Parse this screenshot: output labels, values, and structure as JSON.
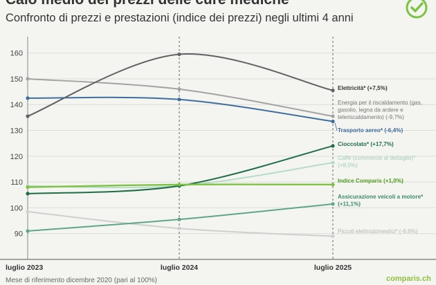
{
  "header": {
    "title": "Calo medio dei prezzi delle cure mediche",
    "subtitle": "Confronto di prezzi e prestazioni (indice dei prezzi) negli ultimi 4 anni"
  },
  "footer": {
    "note": "Mese di riferimento dicembre 2020 (pari al 100%)",
    "brand": "comparis.ch"
  },
  "colors": {
    "background": "#f4f4f1",
    "grid": "#dcdcd8",
    "accent": "#7dc242"
  },
  "logo_icon": "check-circle-icon",
  "chart_data": {
    "type": "line",
    "title": "Calo medio dei prezzi delle cure mediche",
    "subtitle": "Confronto di prezzi e prestazioni (indice dei prezzi) negli ultimi 4 anni",
    "categories": [
      "luglio 2023",
      "luglio 2024",
      "luglio 2025"
    ],
    "ylim": [
      80,
      165
    ],
    "yticks": [
      90,
      100,
      110,
      120,
      130,
      140,
      150,
      160
    ],
    "grid": true,
    "legend": "end-of-line labels, right",
    "series": [
      {
        "name": "Elettricità* (+7,5%)",
        "label_lines": [
          "Elettricità* (+7,5%)"
        ],
        "values": [
          135.5,
          159.5,
          145.5
        ],
        "color": "#5f6163",
        "label_color": "#333333"
      },
      {
        "name": "Energia per il riscaldamento (gas, gasolio, legna da ardere e teleriscaldamento) (-9,7%)",
        "label_lines": [
          "Energia per il riscaldamento (gas,",
          "gasolio, legna da ardere e",
          "teleriscaldamento) (-9,7%)"
        ],
        "values": [
          150.0,
          146.0,
          135.5
        ],
        "color": "#a3a3a3",
        "label_color": "#777777"
      },
      {
        "name": "Trasporto aereo* (-6,4%)",
        "label_lines": [
          "Trasporto aereo* (-6,4%)"
        ],
        "values": [
          142.5,
          142.0,
          133.5
        ],
        "color": "#3f6d9c",
        "label_color": "#3f6d9c"
      },
      {
        "name": "Cioccolato* (+17,7%)",
        "label_lines": [
          "Cioccolato* (+17,7%)"
        ],
        "values": [
          105.5,
          108.5,
          124.0
        ],
        "color": "#1e6d45",
        "label_color": "#1e6d45"
      },
      {
        "name": "Caffè (commercio al dettaglio)* (+8,0%)",
        "label_lines": [
          "Caffè (commercio al dettaglio)*",
          "(+8,0%)"
        ],
        "values": [
          108.5,
          108.5,
          117.5
        ],
        "color": "#b7dcc9",
        "label_color": "#9fcfb6"
      },
      {
        "name": "Indice Comparis (+1,0%)",
        "label_lines": [
          "Indice Comparis (+1,0%)"
        ],
        "values": [
          108.0,
          109.0,
          109.0
        ],
        "color": "#7dc242",
        "label_color": "#4d9a1e"
      },
      {
        "name": "Assicurazione veicoli a motore* (+11,1%)",
        "label_lines": [
          "Assicurazione veicoli a motore*",
          "(+11,1%)"
        ],
        "values": [
          91.0,
          95.5,
          101.5
        ],
        "color": "#5fa58a",
        "label_color": "#3d8a6d"
      },
      {
        "name": "Piccoli elettrodomestici* (-9,6%)",
        "label_lines": [
          "Piccoli elettrodomestici* (-9,6%)"
        ],
        "values": [
          98.5,
          92.0,
          89.0
        ],
        "color": "#cfcfcf",
        "label_color": "#b5b5b5"
      }
    ]
  }
}
